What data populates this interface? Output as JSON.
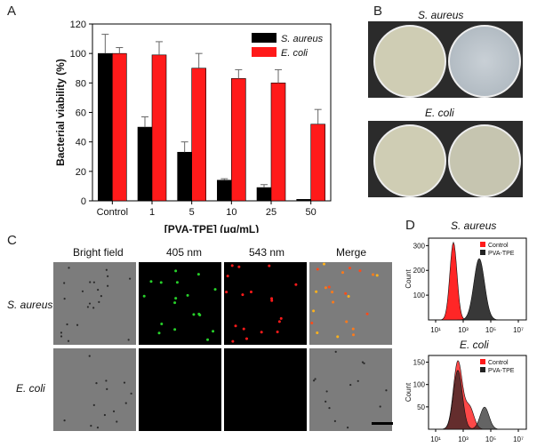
{
  "panels": {
    "a": "A",
    "b": "B",
    "c": "C",
    "d": "D"
  },
  "chart_data": [
    {
      "type": "bar",
      "xlabel": "[PVA-TPE] (μg/mL)",
      "ylabel": "Bacterial viability (%)",
      "ylim": [
        0,
        120
      ],
      "yticks": [
        "0",
        "20",
        "40",
        "60",
        "80",
        "100",
        "120"
      ],
      "categories": [
        "Control",
        "1",
        "5",
        "10",
        "25",
        "50"
      ],
      "legend_position": "top-right",
      "series": [
        {
          "name": "S. aureus",
          "color": "#000000",
          "values": [
            100,
            50,
            33,
            14,
            9,
            1
          ],
          "errors": [
            13,
            7,
            7,
            1,
            2,
            0
          ]
        },
        {
          "name": "E. coli",
          "color": "#ff1a1a",
          "values": [
            100,
            99,
            90,
            83,
            80,
            52
          ],
          "errors": [
            4,
            9,
            10,
            6,
            9,
            10
          ]
        }
      ]
    },
    {
      "type": "area",
      "ylabel": "Count",
      "xticks": [
        "10¹",
        "10³",
        "10⁵",
        "10⁷"
      ],
      "yticks": [
        "100",
        "200",
        "300"
      ],
      "legend": [
        "Control",
        "PVA-TPE"
      ],
      "title": "S. aureus"
    },
    {
      "type": "area",
      "ylabel": "Count",
      "xticks": [
        "10¹",
        "10³",
        "10⁵",
        "10⁷"
      ],
      "yticks": [
        "50",
        "100",
        "150"
      ],
      "legend": [
        "Control",
        "PVA-TPE"
      ],
      "title": "E. coli"
    }
  ],
  "panel_b": {
    "top_label": "S. aureus",
    "bottom_label": "E. coli"
  },
  "panel_c": {
    "columns": [
      "Bright field",
      "405 nm",
      "543 nm",
      "Merge"
    ],
    "rows": [
      "S. aureus",
      "E. coli"
    ]
  },
  "colors": {
    "red": "#ff1a1a",
    "green": "#27d02a",
    "dark": "#222222",
    "plate": "#d6d2b8"
  }
}
